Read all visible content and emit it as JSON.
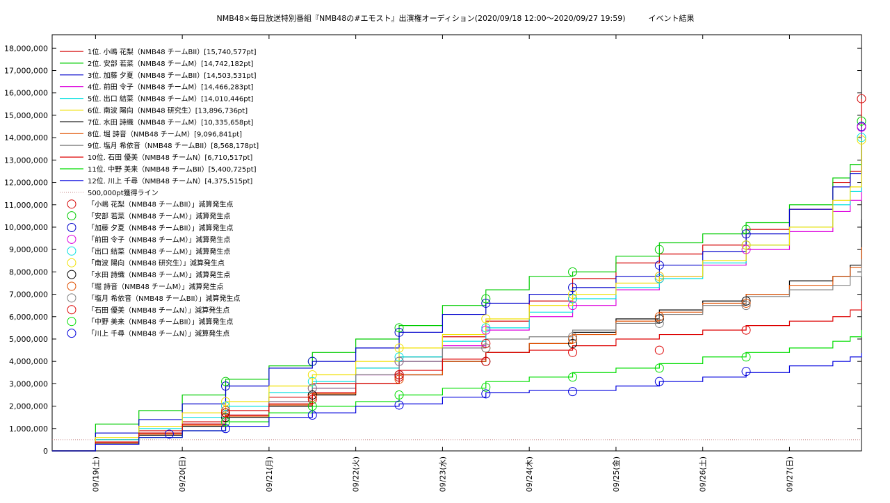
{
  "chart_data": {
    "type": "line",
    "title": "NMB48×毎日放送特別番組『NMB48の#エモスト』出演権オーディション(2020/09/18 12:00〜2020/09/27 19:59)　　　イベント結果",
    "xlabel": "",
    "ylabel": "",
    "x_range_days": [
      0,
      9.33
    ],
    "ylim": [
      0,
      18600000
    ],
    "y_ticks": [
      0,
      1000000,
      2000000,
      3000000,
      4000000,
      5000000,
      6000000,
      7000000,
      8000000,
      9000000,
      10000000,
      11000000,
      12000000,
      13000000,
      14000000,
      15000000,
      16000000,
      17000000,
      18000000
    ],
    "y_tick_labels": [
      "0",
      "1,000,000",
      "2,000,000",
      "3,000,000",
      "4,000,000",
      "5,000,000",
      "6,000,000",
      "7,000,000",
      "8,000,000",
      "9,000,000",
      "10,000,000",
      "11,000,000",
      "12,000,000",
      "13,000,000",
      "14,000,000",
      "15,000,000",
      "16,000,000",
      "17,000,000",
      "18,000,000"
    ],
    "x_ticks": [
      0.5,
      1.5,
      2.5,
      3.5,
      4.5,
      5.5,
      6.5,
      7.5,
      8.5
    ],
    "x_tick_labels": [
      "09/19(土)",
      "09/20(日)",
      "09/21(月)",
      "09/22(火)",
      "09/23(水)",
      "09/24(木)",
      "09/25(金)",
      "09/26(土)",
      "09/27(日)"
    ],
    "grid": true,
    "legend_position": "top-left",
    "threshold": {
      "label": "500,000pt獲得ライン",
      "value": 500000,
      "color": "#c08080"
    },
    "series": [
      {
        "name": "1位. 小嶋 花梨（NMB48 チームBII）[15,740,577pt]",
        "color": "#d40000",
        "x": [
          0,
          0.5,
          1.0,
          1.5,
          2.0,
          2.5,
          3.0,
          3.5,
          4.0,
          4.5,
          5.0,
          5.5,
          6.0,
          6.5,
          7.0,
          7.5,
          8.0,
          8.5,
          9.0,
          9.2,
          9.33
        ],
        "y": [
          0,
          500000,
          900000,
          1300000,
          1800000,
          2400000,
          3000000,
          3700000,
          4200000,
          5100000,
          5800000,
          6700000,
          7700000,
          8400000,
          8800000,
          9200000,
          9900000,
          10800000,
          12000000,
          12500000,
          15740577
        ],
        "markers_x": [
          2.0,
          3.0,
          4.0,
          5.0,
          6.0,
          7.0,
          8.0,
          9.33
        ],
        "markers_y": [
          1700000,
          2500000,
          3300000,
          4800000,
          6800000,
          7700000,
          9200000,
          15740577
        ]
      },
      {
        "name": "2位. 安部 若菜（NMB48 チームM）[14,742,182pt]",
        "color": "#00cc00",
        "x": [
          0,
          0.5,
          1.0,
          1.5,
          2.0,
          2.5,
          3.0,
          3.5,
          4.0,
          4.5,
          5.0,
          5.5,
          6.0,
          6.5,
          7.0,
          7.5,
          8.0,
          8.5,
          9.0,
          9.2,
          9.33
        ],
        "y": [
          0,
          1200000,
          1800000,
          2500000,
          3200000,
          3800000,
          4400000,
          5000000,
          5600000,
          6500000,
          7200000,
          7800000,
          8000000,
          8700000,
          9300000,
          9700000,
          10200000,
          11000000,
          12200000,
          12800000,
          14742182
        ],
        "markers_x": [
          2.0,
          3.0,
          4.0,
          5.0,
          6.0,
          7.0,
          8.0,
          9.33
        ],
        "markers_y": [
          3100000,
          4000000,
          5500000,
          6800000,
          8000000,
          9000000,
          9900000,
          14742182
        ]
      },
      {
        "name": "3位. 加藤 夕夏（NMB48 チームBII）[14,503,531pt]",
        "color": "#0000cc",
        "x": [
          0,
          0.5,
          1.0,
          1.5,
          2.0,
          2.5,
          3.0,
          3.5,
          4.0,
          4.5,
          5.0,
          5.5,
          6.0,
          6.5,
          7.0,
          7.5,
          8.0,
          8.5,
          9.0,
          9.2,
          9.33
        ],
        "y": [
          0,
          800000,
          1400000,
          2100000,
          2900000,
          3700000,
          4000000,
          4600000,
          5300000,
          6100000,
          6600000,
          7000000,
          7300000,
          7800000,
          8300000,
          8900000,
          9700000,
          10800000,
          11800000,
          12400000,
          14503531
        ],
        "markers_x": [
          2.0,
          3.0,
          4.0,
          5.0,
          6.0,
          7.0,
          8.0,
          9.33
        ],
        "markers_y": [
          2900000,
          4000000,
          5300000,
          6600000,
          7300000,
          8300000,
          9700000,
          14503531
        ]
      },
      {
        "name": "4位. 前田 令子（NMB48 チームM）[14,466,283pt]",
        "color": "#dd00dd",
        "x": [
          0,
          0.5,
          1.0,
          1.5,
          2.0,
          2.5,
          3.0,
          3.5,
          4.0,
          4.5,
          5.0,
          5.5,
          6.0,
          6.5,
          7.0,
          7.5,
          8.0,
          8.5,
          9.0,
          9.2,
          9.33
        ],
        "y": [
          0,
          400000,
          800000,
          1200000,
          1600000,
          2200000,
          2800000,
          3400000,
          4000000,
          4700000,
          5400000,
          6000000,
          6500000,
          7200000,
          7800000,
          8300000,
          9000000,
          9800000,
          10700000,
          11200000,
          14466283
        ],
        "markers_x": [
          2.0,
          3.0,
          4.0,
          5.0,
          6.0,
          7.0,
          8.0,
          9.33
        ],
        "markers_y": [
          1600000,
          2800000,
          4000000,
          5400000,
          6500000,
          7800000,
          9000000,
          14466283
        ]
      },
      {
        "name": "5位. 出口 結菜（NMB48 チームM）[14,010,446pt]",
        "color": "#00e0e0",
        "x": [
          0,
          0.5,
          1.0,
          1.5,
          2.0,
          2.5,
          3.0,
          3.5,
          4.0,
          4.5,
          5.0,
          5.5,
          6.0,
          6.5,
          7.0,
          7.5,
          8.0,
          8.5,
          9.0,
          9.2,
          9.33
        ],
        "y": [
          0,
          500000,
          1000000,
          1500000,
          2000000,
          2600000,
          3100000,
          3700000,
          4200000,
          4900000,
          5500000,
          6200000,
          6800000,
          7300000,
          7700000,
          8400000,
          9200000,
          10000000,
          11000000,
          11600000,
          14010446
        ],
        "markers_x": [
          2.0,
          3.0,
          4.0,
          5.0,
          6.0,
          7.0,
          8.0,
          9.33
        ],
        "markers_y": [
          2000000,
          3100000,
          4200000,
          5500000,
          6800000,
          7700000,
          9200000,
          14010446
        ]
      },
      {
        "name": "6位. 南波 陽向（NMB48 研究生）[13,896,736pt]",
        "color": "#f0e000",
        "x": [
          0,
          0.5,
          1.0,
          1.5,
          2.0,
          2.5,
          3.0,
          3.5,
          4.0,
          4.5,
          5.0,
          5.5,
          6.0,
          6.5,
          7.0,
          7.5,
          8.0,
          8.5,
          9.0,
          9.2,
          9.33
        ],
        "y": [
          0,
          600000,
          1100000,
          1700000,
          2200000,
          2900000,
          3400000,
          4000000,
          4600000,
          5200000,
          5900000,
          6500000,
          7000000,
          7500000,
          7800000,
          8500000,
          9200000,
          10000000,
          11200000,
          11800000,
          13896736
        ],
        "markers_x": [
          2.0,
          3.0,
          4.0,
          5.0,
          6.0,
          7.0,
          8.0,
          9.33
        ],
        "markers_y": [
          2200000,
          3400000,
          4600000,
          5900000,
          7000000,
          7800000,
          9200000,
          13896736
        ]
      },
      {
        "name": "7位. 水田 詩織（NMB48 チームM）[10,335,658pt]",
        "color": "#000000",
        "x": [
          0,
          0.5,
          1.0,
          1.5,
          2.0,
          2.5,
          3.0,
          3.5,
          4.0,
          4.5,
          5.0,
          5.5,
          6.0,
          6.5,
          7.0,
          7.5,
          8.0,
          8.5,
          9.0,
          9.2,
          9.33
        ],
        "y": [
          0,
          300000,
          700000,
          1100000,
          1500000,
          2000000,
          2500000,
          3000000,
          3400000,
          4000000,
          4400000,
          4800000,
          5300000,
          5900000,
          6300000,
          6700000,
          7000000,
          7600000,
          7800000,
          8300000,
          10335658
        ],
        "markers_x": [
          2.0,
          3.0,
          4.0,
          5.0,
          6.0,
          7.0,
          8.0
        ],
        "markers_y": [
          1500000,
          2500000,
          3400000,
          4000000,
          4800000,
          5900000,
          6700000
        ]
      },
      {
        "name": "8位. 堀 詩音（NMB48 チームM）[9,096,841pt]",
        "color": "#e05000",
        "x": [
          0,
          0.5,
          1.0,
          1.5,
          2.0,
          2.5,
          3.0,
          3.5,
          4.0,
          4.5,
          5.0,
          5.5,
          6.0,
          6.5,
          7.0,
          7.5,
          8.0,
          8.5,
          9.0,
          9.2,
          9.33
        ],
        "y": [
          0,
          350000,
          750000,
          1150000,
          1550000,
          2050000,
          2550000,
          3000000,
          3400000,
          4000000,
          4400000,
          4800000,
          5200000,
          5800000,
          6200000,
          6600000,
          7000000,
          7400000,
          7800000,
          8200000,
          9096841
        ],
        "markers_x": [
          2.0,
          3.0,
          4.0,
          5.0,
          6.0,
          7.0,
          8.0
        ],
        "markers_y": [
          1800000,
          2400000,
          3200000,
          4600000,
          5000000,
          6000000,
          6600000
        ]
      },
      {
        "name": "9位. 塩月 希依音（NMB48 チームBII）[8,568,178pt]",
        "color": "#808080",
        "x": [
          0,
          0.5,
          1.0,
          1.5,
          2.0,
          2.5,
          3.0,
          3.5,
          4.0,
          4.5,
          5.0,
          5.5,
          6.0,
          6.5,
          7.0,
          7.5,
          8.0,
          8.5,
          9.0,
          9.2,
          9.33
        ],
        "y": [
          0,
          400000,
          800000,
          1200000,
          1600000,
          2200000,
          2800000,
          3400000,
          4000000,
          4600000,
          5000000,
          5100000,
          5400000,
          5700000,
          6100000,
          6500000,
          6900000,
          7200000,
          7400000,
          7800000,
          8568178
        ],
        "markers_x": [
          2.0,
          3.0,
          4.0,
          5.0,
          6.0,
          7.0,
          8.0
        ],
        "markers_y": [
          1600000,
          2800000,
          4000000,
          4600000,
          5100000,
          5700000,
          6500000
        ]
      },
      {
        "name": "10位. 石田 優美（NMB48 チームN）[6,710,517pt]",
        "color": "#dd0000",
        "x": [
          0,
          0.5,
          1.0,
          1.5,
          2.0,
          2.5,
          3.0,
          3.5,
          4.0,
          4.5,
          5.0,
          5.5,
          6.0,
          6.5,
          7.0,
          7.5,
          8.0,
          8.5,
          9.0,
          9.2,
          9.33
        ],
        "y": [
          0,
          400000,
          800000,
          1200000,
          1600000,
          2100000,
          2600000,
          3000000,
          3600000,
          4100000,
          4400000,
          4500000,
          4700000,
          5000000,
          5200000,
          5400000,
          5600000,
          5800000,
          6000000,
          6300000,
          6710517
        ],
        "markers_x": [
          2.0,
          3.0,
          4.0,
          5.0,
          6.0,
          7.0,
          8.0
        ],
        "markers_y": [
          1700000,
          2300000,
          3400000,
          4000000,
          4400000,
          4500000,
          5400000
        ]
      },
      {
        "name": "11位. 中野 美来（NMB48 チームBII）[5,400,725pt]",
        "color": "#00dd00",
        "x": [
          0,
          0.5,
          1.0,
          1.5,
          2.0,
          2.5,
          3.0,
          3.5,
          4.0,
          4.5,
          5.0,
          5.5,
          6.0,
          6.5,
          7.0,
          7.5,
          8.0,
          8.5,
          9.0,
          9.2,
          9.33
        ],
        "y": [
          0,
          300000,
          600000,
          900000,
          1300000,
          1700000,
          2000000,
          2200000,
          2500000,
          2800000,
          3100000,
          3300000,
          3500000,
          3700000,
          3900000,
          4200000,
          4400000,
          4600000,
          4900000,
          5100000,
          5400725
        ],
        "markers_x": [
          2.0,
          3.0,
          4.0,
          5.0,
          6.0,
          7.0,
          8.0
        ],
        "markers_y": [
          1300000,
          2000000,
          2500000,
          2850000,
          3300000,
          3700000,
          4200000
        ]
      },
      {
        "name": "12位. 川上 千尋（NMB48 チームN）[4,375,515pt]",
        "color": "#0000dd",
        "x": [
          0,
          0.5,
          1.0,
          1.5,
          2.0,
          2.5,
          3.0,
          3.5,
          4.0,
          4.5,
          5.0,
          5.5,
          6.0,
          6.5,
          7.0,
          7.5,
          8.0,
          8.5,
          9.0,
          9.2,
          9.33
        ],
        "y": [
          0,
          300000,
          600000,
          900000,
          1100000,
          1500000,
          1700000,
          2000000,
          2100000,
          2400000,
          2600000,
          2700000,
          2700000,
          2900000,
          3100000,
          3300000,
          3500000,
          3800000,
          4000000,
          4200000,
          4375515
        ],
        "markers_x": [
          1.35,
          2.0,
          3.0,
          4.0,
          5.0,
          6.0,
          7.0,
          8.0
        ],
        "markers_y": [
          750000,
          1000000,
          1600000,
          2050000,
          2550000,
          2650000,
          3100000,
          3550000
        ]
      }
    ],
    "marker_legend": [
      {
        "label": "「小嶋 花梨（NMB48 チームBII）」減算発生点",
        "color": "#d40000"
      },
      {
        "label": "「安部 若菜（NMB48 チームM）」減算発生点",
        "color": "#00cc00"
      },
      {
        "label": "「加藤 夕夏（NMB48 チームBII）」減算発生点",
        "color": "#0000cc"
      },
      {
        "label": "「前田 令子（NMB48 チームM）」減算発生点",
        "color": "#dd00dd"
      },
      {
        "label": "「出口 結菜（NMB48 チームM）」減算発生点",
        "color": "#00e0e0"
      },
      {
        "label": "「南波 陽向（NMB48 研究生）」減算発生点",
        "color": "#f0e000"
      },
      {
        "label": "「水田 詩織（NMB48 チームM）」減算発生点",
        "color": "#000000"
      },
      {
        "label": "「堀 詩音（NMB48 チームM）」減算発生点",
        "color": "#e05000"
      },
      {
        "label": "「塩月 希依音（NMB48 チームBII）」減算発生点",
        "color": "#808080"
      },
      {
        "label": "「石田 優美（NMB48 チームN）」減算発生点",
        "color": "#dd0000"
      },
      {
        "label": "「中野 美来（NMB48 チームBII）」減算発生点",
        "color": "#00dd00"
      },
      {
        "label": "「川上 千尋（NMB48 チームN）」減算発生点",
        "color": "#0000dd"
      }
    ]
  }
}
